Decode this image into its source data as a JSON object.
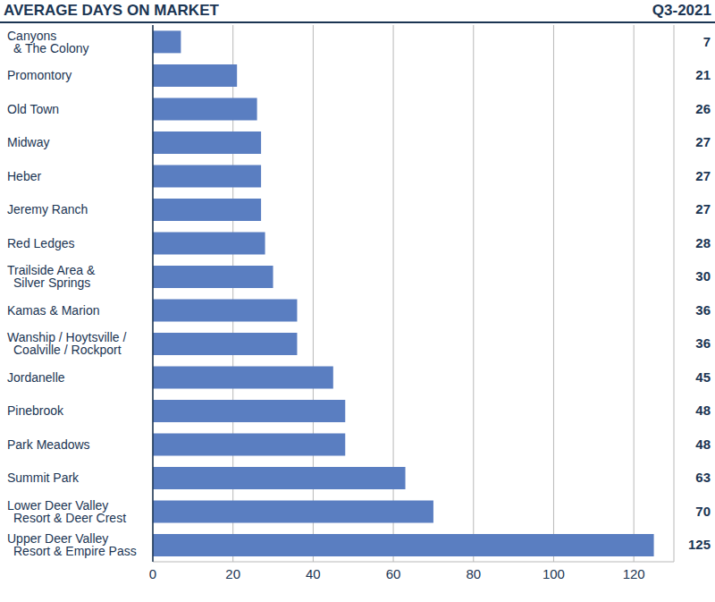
{
  "chart_data": {
    "type": "bar",
    "title": "AVERAGE DAYS ON MARKET",
    "subtitle": "Q3-2021",
    "orientation": "horizontal",
    "categories": [
      "Canyons\n& The Colony",
      "Promontory",
      "Old Town",
      "Midway",
      "Heber",
      "Jeremy Ranch",
      "Red Ledges",
      "Trailside Area &\nSilver Springs",
      "Kamas & Marion",
      "Wanship / Hoytsville /\nCoalville / Rockport",
      "Jordanelle",
      "Pinebrook",
      "Park Meadows",
      "Summit Park",
      "Lower Deer Valley\nResort & Deer Crest",
      "Upper Deer Valley\nResort & Empire Pass"
    ],
    "values": [
      7,
      21,
      26,
      27,
      27,
      27,
      28,
      30,
      36,
      36,
      45,
      48,
      48,
      63,
      70,
      125
    ],
    "color": "#5a7ec1",
    "xlim": [
      0,
      130
    ],
    "xticks": [
      0,
      20,
      40,
      60,
      80,
      100,
      120
    ],
    "grid": true,
    "data_labels": true
  }
}
